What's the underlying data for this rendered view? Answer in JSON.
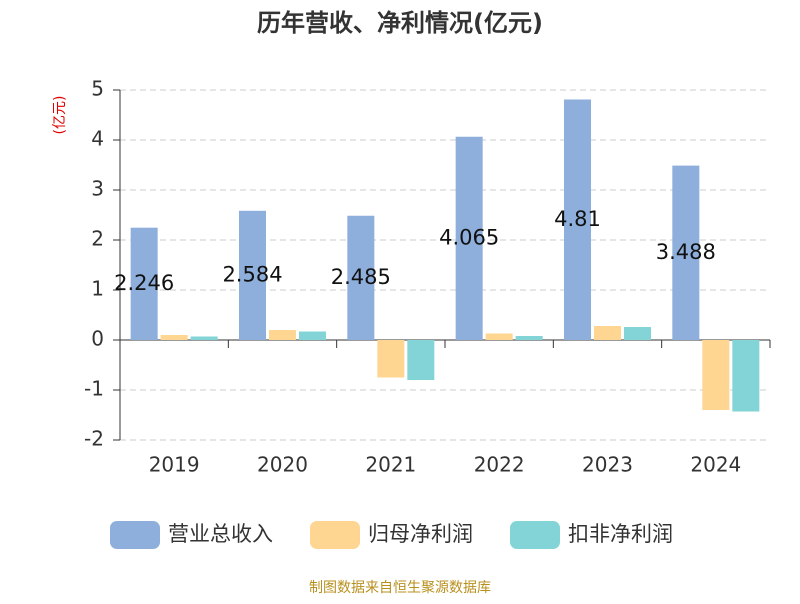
{
  "chart_data": {
    "type": "bar",
    "title": "历年营收、净利情况(亿元)",
    "y_label": "(亿元)",
    "source": "制图数据来自恒生聚源数据库",
    "categories": [
      "2019",
      "2020",
      "2021",
      "2022",
      "2023",
      "2024"
    ],
    "series": [
      {
        "name": "营业总收入",
        "color": "#8eaedc",
        "values": [
          2.246,
          2.584,
          2.485,
          4.065,
          4.81,
          3.488
        ],
        "show_labels": true
      },
      {
        "name": "归母净利润",
        "color": "#ffd592",
        "values": [
          0.1,
          0.2,
          -0.75,
          0.13,
          0.28,
          -1.4
        ]
      },
      {
        "name": "扣非净利润",
        "color": "#82d4d6",
        "values": [
          0.07,
          0.17,
          -0.8,
          0.08,
          0.26,
          -1.43
        ]
      }
    ],
    "ylim": [
      -2,
      5
    ],
    "yticks": [
      -2,
      -1,
      0,
      1,
      2,
      3,
      4,
      5
    ],
    "grid": true
  }
}
